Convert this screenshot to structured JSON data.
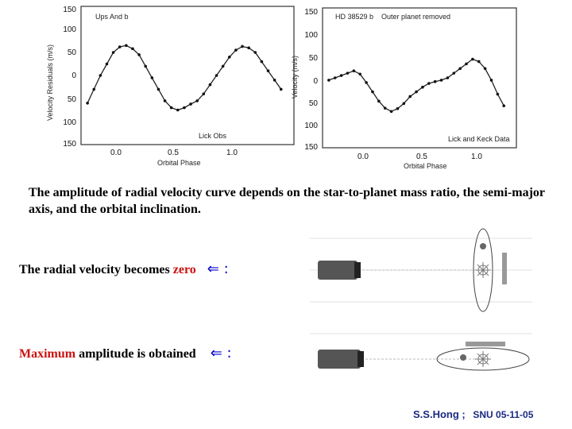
{
  "chart_data": [
    {
      "type": "scatter",
      "title": "Ups And b",
      "annotation": "Lick Obs",
      "xlabel": "Orbital Phase",
      "ylabel": "Velocity Residuals (m/s)",
      "xlim": [
        -0.25,
        1.4
      ],
      "ylim": [
        -150,
        150
      ],
      "x_ticks": [
        "0.0",
        "0.5",
        "1.0"
      ],
      "y_ticks": [
        "150",
        "100",
        "50",
        "0",
        "50",
        "100",
        "150"
      ],
      "series": [
        {
          "x": [
            -0.2,
            -0.15,
            -0.1,
            -0.05,
            0.0,
            0.05,
            0.1,
            0.15,
            0.2,
            0.25,
            0.3,
            0.35,
            0.4,
            0.45,
            0.5,
            0.55,
            0.6,
            0.65,
            0.7,
            0.75,
            0.8,
            0.85,
            0.9,
            0.95,
            1.0,
            1.05,
            1.1,
            1.15,
            1.2,
            1.25,
            1.3
          ],
          "y": [
            -60,
            -30,
            0,
            25,
            50,
            62,
            65,
            58,
            45,
            20,
            -5,
            -30,
            -55,
            -70,
            -75,
            -70,
            -62,
            -55,
            -40,
            -20,
            0,
            20,
            40,
            55,
            63,
            60,
            50,
            30,
            10,
            -10,
            -30
          ]
        }
      ]
    },
    {
      "type": "scatter",
      "title": "HD 38529 b",
      "subtitle": "Outer planet removed",
      "annotation": "Lick and Keck Data",
      "xlabel": "Orbital Phase",
      "ylabel": "Velocity (m/s)",
      "xlim": [
        -0.25,
        1.3
      ],
      "ylim": [
        -150,
        150
      ],
      "x_ticks": [
        "0.0",
        "0.5",
        "1.0"
      ],
      "y_ticks": [
        "150",
        "100",
        "50",
        "0",
        "50",
        "100",
        "150"
      ],
      "series": [
        {
          "x": [
            -0.2,
            -0.15,
            -0.1,
            -0.05,
            0.0,
            0.05,
            0.1,
            0.15,
            0.2,
            0.25,
            0.3,
            0.35,
            0.4,
            0.45,
            0.5,
            0.55,
            0.6,
            0.65,
            0.7,
            0.75,
            0.8,
            0.85,
            0.9,
            0.95,
            1.0,
            1.05,
            1.1,
            1.15,
            1.2
          ],
          "y": [
            -5,
            0,
            5,
            10,
            15,
            8,
            -10,
            -30,
            -50,
            -65,
            -72,
            -66,
            -55,
            -40,
            -30,
            -20,
            -12,
            -8,
            -5,
            0,
            10,
            20,
            30,
            40,
            35,
            20,
            -5,
            -35,
            -60
          ]
        }
      ]
    }
  ],
  "text": {
    "paragraph": "The amplitude of radial velocity curve depends on the star-to-planet mass ratio, the semi-major axis, and the orbital inclination.",
    "zero_prefix": "The radial velocity becomes ",
    "zero_word": "zero",
    "max_word": "Maximum",
    "max_suffix": " amplitude is obtained",
    "arrow": "⇐ :",
    "footer_name": "S.S.Hong ;",
    "footer_date": "SNU 05-11-05"
  },
  "colors": {
    "highlight": "#cc1111",
    "arrow": "#0000cc",
    "footer": "#1a2a80"
  }
}
